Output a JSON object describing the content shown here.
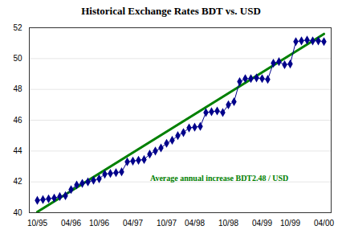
{
  "chart_data": {
    "type": "line",
    "title": "Historical Exchange Rates BDT vs. USD",
    "categories": [
      "10/95",
      null,
      null,
      null,
      null,
      null,
      "04/96",
      null,
      null,
      null,
      null,
      "10/96",
      null,
      null,
      null,
      null,
      null,
      "04/97",
      null,
      null,
      null,
      null,
      null,
      "10/97",
      null,
      null,
      null,
      null,
      "04/98",
      null,
      null,
      null,
      null,
      null,
      "10/98",
      null,
      null,
      null,
      null,
      null,
      "04/99",
      null,
      null,
      null,
      null,
      "10/99",
      null,
      null,
      null,
      null,
      null,
      "04/00"
    ],
    "values": [
      40.8,
      40.85,
      40.9,
      40.95,
      41.05,
      41.1,
      41.5,
      41.8,
      41.9,
      42.0,
      42.1,
      42.2,
      42.5,
      42.55,
      42.6,
      42.65,
      43.3,
      43.35,
      43.4,
      43.45,
      43.8,
      44.0,
      44.2,
      44.5,
      44.7,
      45.0,
      45.2,
      45.5,
      45.55,
      45.6,
      46.5,
      46.55,
      46.6,
      46.5,
      47.0,
      47.2,
      48.5,
      48.7,
      48.7,
      48.75,
      48.7,
      48.65,
      49.7,
      49.8,
      49.6,
      49.65,
      51.1,
      51.15,
      51.2,
      51.15,
      51.15,
      51.1
    ],
    "color": "#00008B",
    "marker": "diamond",
    "ylim": [
      40,
      52
    ],
    "yticks": [
      40,
      42,
      44,
      46,
      48,
      50,
      52
    ],
    "grid": true,
    "trend": {
      "values": [
        40.05,
        51.6
      ],
      "color": "#008000"
    },
    "annotations": [
      {
        "text": "Average annual increase BDT2.48 / USD",
        "color": "#008000"
      }
    ]
  }
}
